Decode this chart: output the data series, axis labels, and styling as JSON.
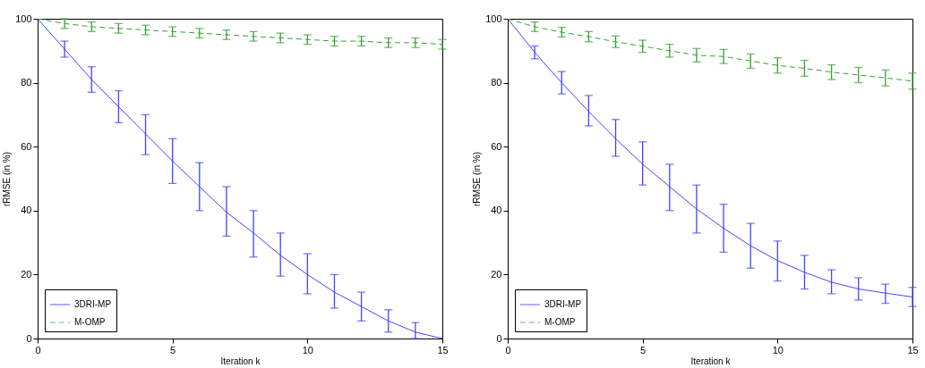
{
  "chart_data": [
    {
      "type": "line",
      "xlabel": "Iteration k",
      "ylabel": "rRMSE (in %)",
      "xlim": [
        0,
        15
      ],
      "xticks": [
        0,
        5,
        10,
        15
      ],
      "ylim": [
        0,
        100
      ],
      "yticks": [
        0,
        20,
        40,
        60,
        80,
        100
      ],
      "legend": "bottom left",
      "x": [
        0,
        1,
        2,
        3,
        4,
        5,
        6,
        7,
        8,
        9,
        10,
        11,
        12,
        13,
        14,
        15
      ],
      "series": [
        {
          "name": "3DRI-MP",
          "color": "#4444ff",
          "line_style": "solid",
          "values": [
            100,
            90.5,
            81,
            72.5,
            64,
            55.5,
            47.5,
            39.5,
            33,
            26,
            20,
            14.5,
            10,
            5.5,
            2,
            0
          ],
          "errors": [
            null,
            [
              88,
              93
            ],
            [
              77,
              85
            ],
            [
              67.5,
              77.5
            ],
            [
              57.5,
              70
            ],
            [
              48.5,
              62.5
            ],
            [
              40,
              55
            ],
            [
              32,
              47.5
            ],
            [
              25.5,
              40
            ],
            [
              19.5,
              33
            ],
            [
              14,
              26.5
            ],
            [
              9.5,
              20
            ],
            [
              5.5,
              14.5
            ],
            [
              2,
              9
            ],
            [
              0,
              5
            ],
            null
          ]
        },
        {
          "name": "M-OMP",
          "color": "#33a033",
          "line_style": "dashed",
          "values": [
            100,
            98.5,
            97.5,
            97,
            96.5,
            96,
            95.5,
            95,
            94.5,
            94,
            93.5,
            93,
            93,
            92.5,
            92.5,
            92
          ],
          "errors": [
            null,
            [
              97,
              100
            ],
            [
              96,
              99
            ],
            [
              95.5,
              98.5
            ],
            [
              95,
              98
            ],
            [
              94.5,
              97.5
            ],
            [
              94,
              97
            ],
            [
              93.5,
              96.5
            ],
            [
              93,
              96
            ],
            [
              92.5,
              95.5
            ],
            [
              92,
              95
            ],
            [
              91.5,
              94.5
            ],
            [
              91.5,
              94.5
            ],
            [
              91,
              94
            ],
            [
              91,
              94
            ],
            [
              90.5,
              93.5
            ]
          ]
        }
      ]
    },
    {
      "type": "line",
      "xlabel": "Iteration k",
      "ylabel": "rRMSE (in %)",
      "xlim": [
        0,
        15
      ],
      "xticks": [
        0,
        5,
        10,
        15
      ],
      "ylim": [
        0,
        100
      ],
      "yticks": [
        0,
        20,
        40,
        60,
        80,
        100
      ],
      "legend": "bottom left",
      "x": [
        0,
        1,
        2,
        3,
        4,
        5,
        6,
        7,
        8,
        9,
        10,
        11,
        12,
        13,
        14,
        15
      ],
      "series": [
        {
          "name": "3DRI-MP",
          "color": "#4444ff",
          "line_style": "solid",
          "values": [
            100,
            89.5,
            80,
            71,
            62.5,
            54.5,
            47.5,
            40.5,
            34.5,
            29,
            24.4,
            20.7,
            17.6,
            15.5,
            14.2,
            13
          ],
          "errors": [
            null,
            [
              87.5,
              91.5
            ],
            [
              76.5,
              83.5
            ],
            [
              66.5,
              76
            ],
            [
              57,
              68.5
            ],
            [
              48,
              61.5
            ],
            [
              40,
              54.5
            ],
            [
              33,
              48
            ],
            [
              27,
              42
            ],
            [
              22,
              36
            ],
            [
              18,
              30.5
            ],
            [
              15.5,
              26
            ],
            [
              14,
              21.5
            ],
            [
              12,
              19
            ],
            [
              11,
              17
            ],
            [
              10,
              16
            ]
          ]
        },
        {
          "name": "M-OMP",
          "color": "#33a033",
          "line_style": "dashed",
          "values": [
            100,
            97.5,
            95.8,
            94.4,
            92.8,
            91.4,
            90,
            88.6,
            88.2,
            86.8,
            85.4,
            84.5,
            83.3,
            82.4,
            81.5,
            80.5
          ],
          "errors": [
            null,
            [
              96,
              99
            ],
            [
              94.3,
              97.3
            ],
            [
              92.8,
              96
            ],
            [
              91,
              94.6
            ],
            [
              89.5,
              93.3
            ],
            [
              88,
              92
            ],
            [
              86.5,
              90.7
            ],
            [
              86,
              90.4
            ],
            [
              84.5,
              89
            ],
            [
              83,
              87.8
            ],
            [
              82,
              87
            ],
            [
              81,
              85.6
            ],
            [
              80,
              84.8
            ],
            [
              79,
              84
            ],
            [
              78,
              83
            ]
          ]
        }
      ]
    }
  ]
}
